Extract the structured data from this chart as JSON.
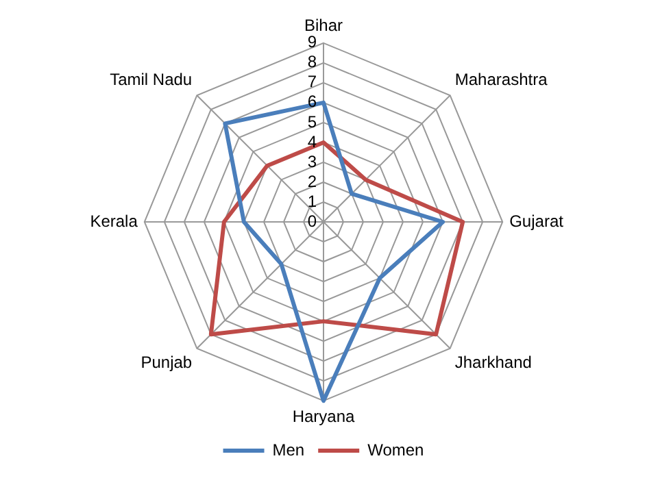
{
  "chart_data": {
    "type": "radar",
    "categories": [
      "Bihar",
      "Maharashtra",
      "Gujarat",
      "Jharkhand",
      "Haryana",
      "Punjab",
      "Kerala",
      "Tamil Nadu"
    ],
    "series": [
      {
        "name": "Men",
        "color": "#4a7ebb",
        "values": [
          6,
          2,
          6,
          4,
          9,
          3,
          4,
          7
        ]
      },
      {
        "name": "Women",
        "color": "#be4b48",
        "values": [
          4,
          3,
          7,
          8,
          5,
          8,
          5,
          4
        ]
      }
    ],
    "ylim": [
      0,
      9
    ],
    "yticks": [
      0,
      1,
      2,
      3,
      4,
      5,
      6,
      7,
      8,
      9
    ],
    "grid": true,
    "legend": "bottom",
    "marker": "none",
    "line_style": "solid"
  }
}
